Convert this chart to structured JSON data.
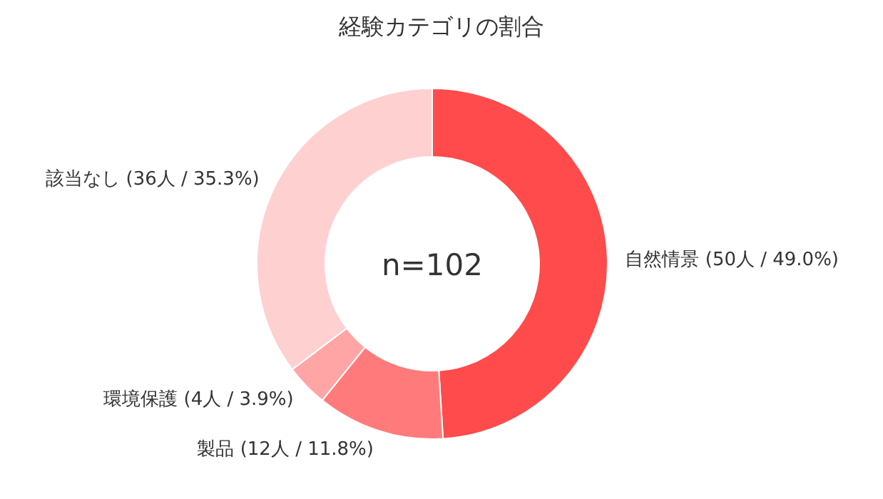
{
  "chart_data": {
    "type": "donut",
    "title": "経験カテゴリの割合",
    "categories": [
      "自然情景",
      "製品",
      "環境保護",
      "該当なし"
    ],
    "values": [
      50,
      12,
      4,
      36
    ],
    "value_labels": [
      "(50人 / 49.0%)",
      "(12人 / 11.8%)",
      "(4人 / 3.9%)",
      "(36人 / 35.3%)"
    ],
    "colors": [
      "#ff4b4b",
      "#ff7b7b",
      "#ffa5a5",
      "#ffd0d0"
    ],
    "annotations": [
      "n=102"
    ],
    "legend": false
  }
}
